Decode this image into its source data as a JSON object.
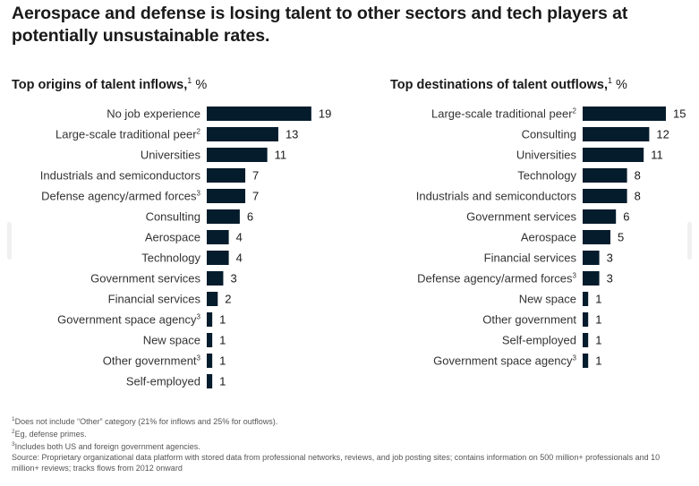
{
  "title": "Aerospace and defense is losing talent to other sectors and tech players at potentially unsustainable rates.",
  "chart_data": [
    {
      "type": "bar",
      "orientation": "horizontal",
      "title": "Top origins of talent inflows,",
      "title_sup": "1",
      "unit": "%",
      "categories": [
        "No job experience",
        "Large-scale traditional peer",
        "Universities",
        "Industrials and semiconductors",
        "Defense agency/armed forces",
        "Consulting",
        "Aerospace",
        "Technology",
        "Government services",
        "Financial services",
        "Government space agency",
        "New space",
        "Other government",
        "Self-employed"
      ],
      "category_sups": [
        "",
        "2",
        "",
        "",
        "3",
        "",
        "",
        "",
        "",
        "",
        "3",
        "",
        "3",
        ""
      ],
      "values": [
        19,
        13,
        11,
        7,
        7,
        6,
        4,
        4,
        3,
        2,
        1,
        1,
        1,
        1
      ],
      "bar_color": "#051c2c"
    },
    {
      "type": "bar",
      "orientation": "horizontal",
      "title": "Top destinations of talent outflows,",
      "title_sup": "1",
      "unit": "%",
      "categories": [
        "Large-scale traditional peer",
        "Consulting",
        "Universities",
        "Technology",
        "Industrials and semiconductors",
        "Government services",
        "Aerospace",
        "Financial services",
        "Defense agency/armed forces",
        "New space",
        "Other government",
        "Self-employed",
        "Government space agency"
      ],
      "category_sups": [
        "2",
        "",
        "",
        "",
        "",
        "",
        "",
        "",
        "3",
        "",
        "",
        "",
        "3"
      ],
      "values": [
        15,
        12,
        11,
        8,
        8,
        6,
        5,
        3,
        3,
        1,
        1,
        1,
        1
      ],
      "bar_color": "#051c2c"
    }
  ],
  "footnotes": [
    {
      "sup": "1",
      "text": "Does not include “Other” category (21% for inflows and 25% for outflows)."
    },
    {
      "sup": "2",
      "text": "Eg, defense primes."
    },
    {
      "sup": "3",
      "text": "Includes both US and foreign government agencies."
    },
    {
      "sup": "",
      "text": "Source: Proprietary organizational data platform with stored data from professional networks, reviews, and job posting sites; contains information on 500 million+ professionals and 10 million+ reviews; tracks flows from 2012 onward"
    }
  ]
}
